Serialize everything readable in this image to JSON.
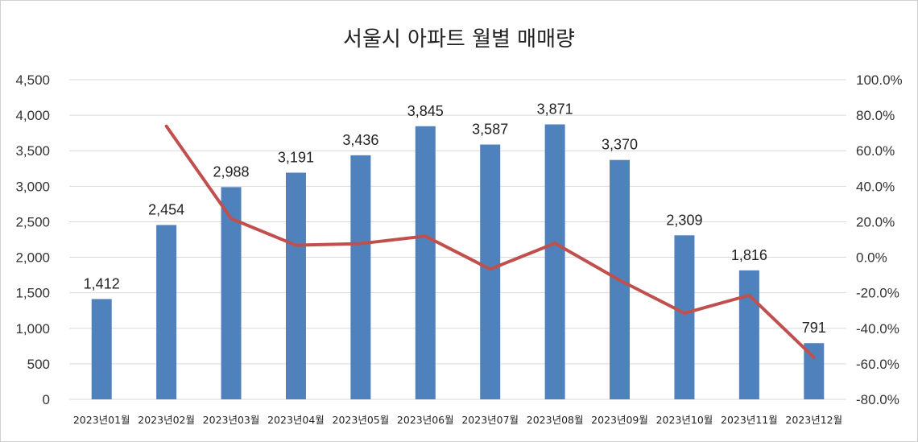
{
  "chart_data": {
    "type": "bar",
    "title": "서울시 아파트 월별 매매량",
    "categories": [
      "2023년01월",
      "2023년02월",
      "2023년03월",
      "2023년04월",
      "2023년05월",
      "2023년06월",
      "2023년07월",
      "2023년08월",
      "2023년09월",
      "2023년10월",
      "2023년11월",
      "2023년12월"
    ],
    "series": [
      {
        "type": "bar",
        "axis": "left",
        "color": "#4f81bd",
        "values": [
          1412,
          2454,
          2988,
          3191,
          3436,
          3845,
          3587,
          3871,
          3370,
          2309,
          1816,
          791
        ],
        "data_labels": [
          "1,412",
          "2,454",
          "2,988",
          "3,191",
          "3,436",
          "3,845",
          "3,587",
          "3,871",
          "3,370",
          "2,309",
          "1,816",
          "791"
        ]
      },
      {
        "type": "line",
        "axis": "right",
        "color": "#c0504d",
        "values": [
          null,
          73.8,
          21.8,
          6.8,
          7.7,
          11.9,
          -6.7,
          7.9,
          -12.9,
          -31.5,
          -21.4,
          -56.4
        ]
      }
    ],
    "y_left": {
      "min": 0,
      "max": 4500,
      "step": 500,
      "ticks": [
        "0",
        "500",
        "1,000",
        "1,500",
        "2,000",
        "2,500",
        "3,000",
        "3,500",
        "4,000",
        "4,500"
      ]
    },
    "y_right": {
      "min": -80,
      "max": 100,
      "step": 20,
      "ticks": [
        "-80.0%",
        "-60.0%",
        "-40.0%",
        "-20.0%",
        "0.0%",
        "20.0%",
        "40.0%",
        "60.0%",
        "80.0%",
        "100.0%"
      ]
    },
    "grid": true,
    "legend": "none"
  }
}
